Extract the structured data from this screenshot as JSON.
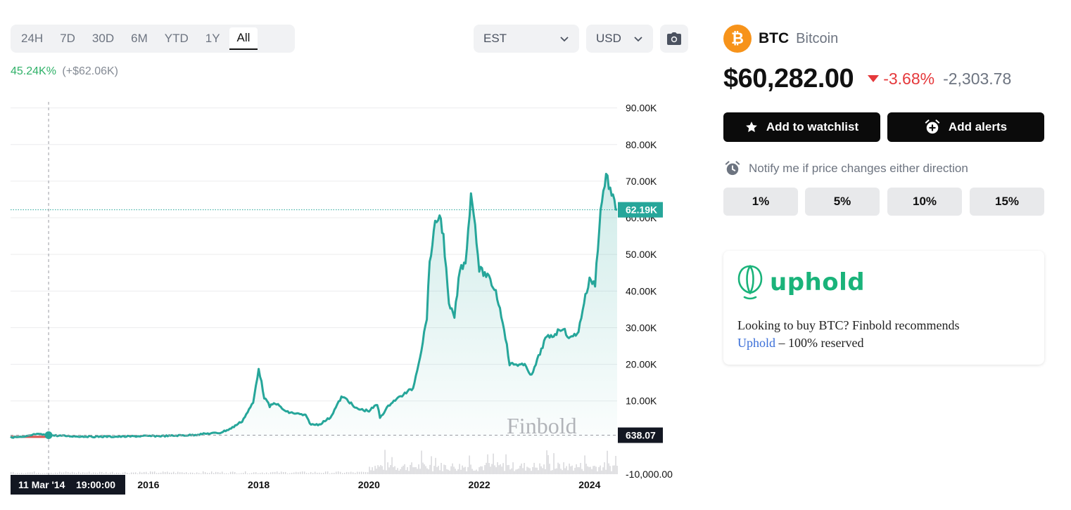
{
  "toolbar": {
    "ranges": [
      "24H",
      "7D",
      "30D",
      "6M",
      "YTD",
      "1Y",
      "All"
    ],
    "active_range": "All",
    "timezone": "EST",
    "currency": "USD",
    "screenshot_icon": "camera-icon"
  },
  "performance": {
    "percent": "45.24K%",
    "absolute": "(+$62.06K)"
  },
  "asset": {
    "symbol": "BTC",
    "name": "Bitcoin",
    "logo_letter": "₿",
    "price": "$60,282.00",
    "change_percent": "-3.68%",
    "change_abs": "-2,303.78"
  },
  "actions": {
    "watchlist_label": "Add to watchlist",
    "alerts_label": "Add alerts"
  },
  "notify": {
    "text": "Notify me if price changes either direction",
    "options": [
      "1%",
      "5%",
      "10%",
      "15%"
    ]
  },
  "promo": {
    "brand": "uphold",
    "text_before": "Looking to buy BTC? Finbold recommends",
    "link": "Uphold",
    "text_after": " – 100% reserved"
  },
  "chart_data": {
    "type": "area",
    "watermark": "Finbold",
    "y_ticks": [
      "90.00K",
      "80.00K",
      "70.00K",
      "60.00K",
      "50.00K",
      "40.00K",
      "30.00K",
      "20.00K",
      "10.00K",
      "-10,000.00"
    ],
    "y_tick_values": [
      90000,
      80000,
      70000,
      60000,
      50000,
      40000,
      30000,
      20000,
      10000,
      -10000
    ],
    "ylim": [
      -10000,
      93000
    ],
    "x_ticks": [
      "2016",
      "2018",
      "2020",
      "2022",
      "2024"
    ],
    "x_tick_values": [
      2016.0,
      2018.0,
      2020.0,
      2022.0,
      2024.0
    ],
    "xlim": [
      2013.5,
      2024.5
    ],
    "current_price_label": "62.19K",
    "current_price": 62190,
    "crosshair_price_label": "638.07",
    "crosshair_price": 638.07,
    "crosshair_time_label": "11 Mar '14",
    "crosshair_clock_label": "19:00:00",
    "crosshair_x": 2014.19,
    "colors": {
      "line": "#26a69a",
      "early_line": "#d9534f",
      "fill": "#26a69a",
      "tag": "#26a69a",
      "crosshair_tag": "#131722",
      "volume": "#d4d4d8"
    },
    "series": [
      {
        "x": [
          2013.5,
          2013.75,
          2013.95,
          2014.1,
          2014.19,
          2014.4,
          2014.7,
          2015.0,
          2015.5,
          2015.9,
          2016.3,
          2016.8,
          2017.0,
          2017.3,
          2017.5,
          2017.7,
          2017.9,
          2018.0,
          2018.1,
          2018.2,
          2018.3,
          2018.5,
          2018.7,
          2018.85,
          2018.95,
          2019.1,
          2019.3,
          2019.5,
          2019.6,
          2019.75,
          2019.9,
          2020.0,
          2020.15,
          2020.2,
          2020.4,
          2020.6,
          2020.8,
          2020.95,
          2021.05,
          2021.1,
          2021.2,
          2021.28,
          2021.35,
          2021.45,
          2021.55,
          2021.65,
          2021.75,
          2021.85,
          2021.9,
          2022.0,
          2022.15,
          2022.3,
          2022.45,
          2022.55,
          2022.7,
          2022.85,
          2022.95,
          2023.05,
          2023.2,
          2023.35,
          2023.5,
          2023.65,
          2023.8,
          2023.9,
          2024.0,
          2024.1,
          2024.2,
          2024.3,
          2024.4,
          2024.5
        ],
        "y": [
          100,
          130,
          900,
          800,
          640,
          500,
          330,
          250,
          250,
          400,
          430,
          700,
          1000,
          1300,
          2500,
          4500,
          9500,
          19000,
          11000,
          8500,
          9500,
          7000,
          6500,
          6000,
          3500,
          3600,
          5500,
          11000,
          10500,
          8000,
          7500,
          7300,
          9000,
          5500,
          9500,
          11500,
          13500,
          24000,
          33000,
          48000,
          58000,
          61000,
          55000,
          36000,
          33000,
          46000,
          48000,
          66000,
          62000,
          46000,
          44000,
          40000,
          30000,
          20000,
          20000,
          19500,
          16800,
          21000,
          27000,
          28000,
          30000,
          27000,
          29000,
          37000,
          43000,
          42000,
          62000,
          72000,
          66000,
          62190
        ]
      }
    ],
    "volume": {
      "start": 2020.0,
      "level": 0.4
    }
  }
}
